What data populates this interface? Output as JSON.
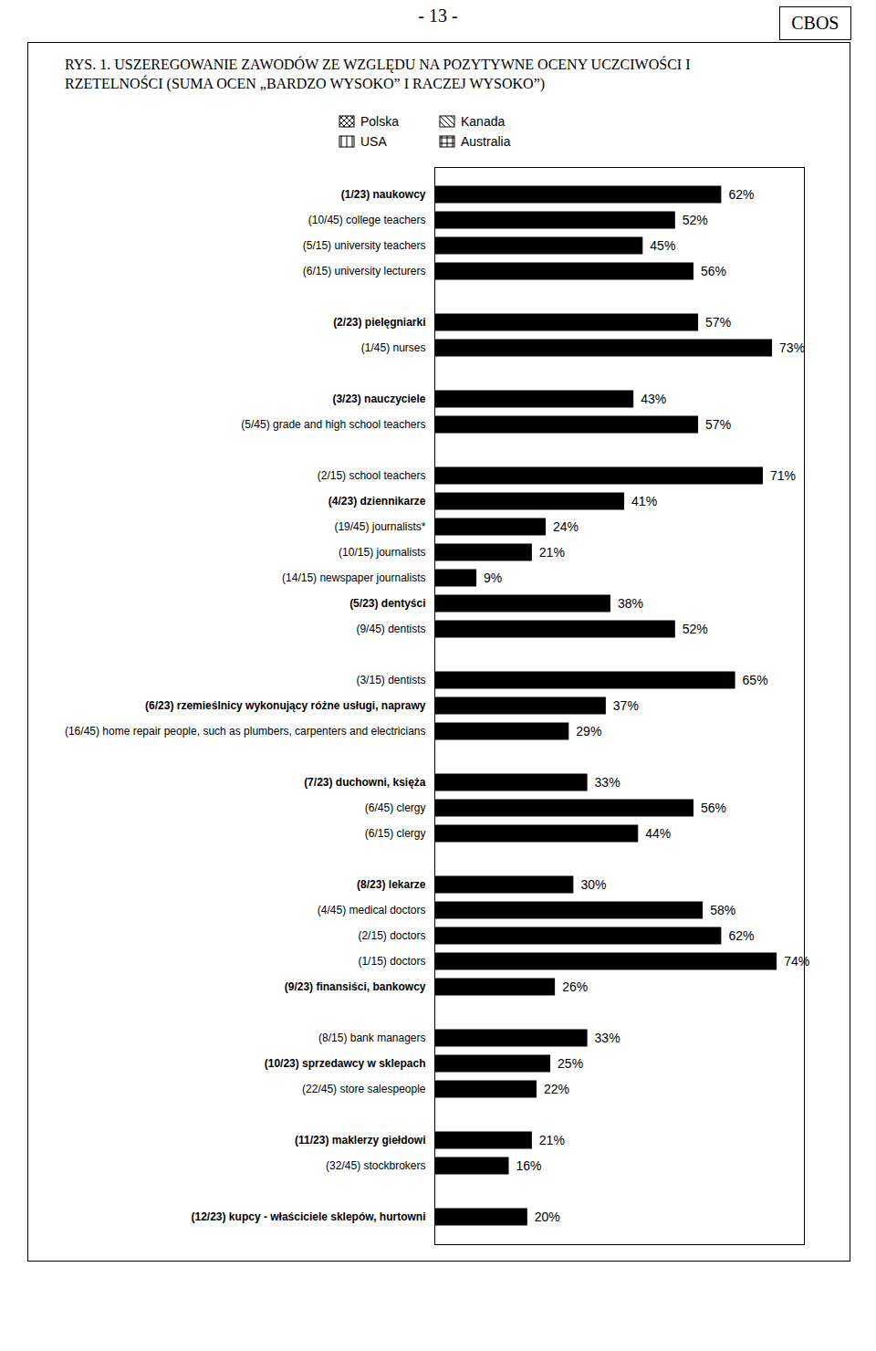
{
  "chart_data": {
    "type": "bar",
    "orientation": "horizontal",
    "title": "RYS. 1. USZEREGOWANIE ZAWODÓW ZE WZGLĘDU NA POZYTYWNE OCENY UCZCIWOŚCI I RZETELNOŚCI (SUMA OCEN „BARDZO WYSOKO” I RACZEJ WYSOKO”)",
    "page_label": "- 13 -",
    "source": "CBOS",
    "legend": "top",
    "data_labels": true,
    "tick_labels": "y",
    "xlim": [
      0,
      80
    ],
    "xticks": [],
    "categories": [
      "(1/23) naukowcy",
      "(10/45) college teachers",
      "(5/15) university teachers",
      "(6/15) university lecturers",
      null,
      "(2/23) pielęgniarki",
      "(1/45) nurses",
      null,
      "(3/23) nauczyciele",
      "(5/45) grade and high school teachers",
      null,
      "(2/15) school teachers",
      "(4/23) dziennikarze",
      "(19/45) journalists*",
      "(10/15) journalists",
      "(14/15) newspaper journalists",
      "(5/23) dentyści",
      "(9/45) dentists",
      null,
      "(3/15) dentists",
      "(6/23) rzemieślnicy wykonujący różne usługi, naprawy",
      "(16/45) home repair people, such as plumbers, carpenters and electricians",
      null,
      "(7/23) duchowni, księża",
      "(6/45) clergy",
      "(6/15) clergy",
      null,
      "(8/23) lekarze",
      "(4/45) medical doctors",
      "(2/15) doctors",
      "(1/15) doctors",
      "(9/23) finansiści, bankowcy",
      null,
      "(8/15) bank managers",
      "(10/23) sprzedawcy w sklepach",
      "(22/45) store salespeople",
      null,
      "(11/23) maklerzy giełdowi",
      "(32/45) stockbrokers",
      null,
      "(12/23) kupcy - właściciele sklepów, hurtowni"
    ],
    "series": [
      {
        "name": "Polska",
        "color": "#000000",
        "values": [
          62,
          null,
          null,
          null,
          null,
          57,
          null,
          null,
          43,
          null,
          null,
          null,
          41,
          null,
          null,
          null,
          38,
          null,
          null,
          null,
          37,
          null,
          null,
          33,
          null,
          null,
          null,
          30,
          null,
          null,
          null,
          26,
          null,
          null,
          25,
          null,
          null,
          21,
          null,
          null,
          20
        ],
        "value_labels": [
          "62%",
          null,
          null,
          null,
          null,
          "57%",
          null,
          null,
          "43%",
          null,
          null,
          null,
          "41%",
          null,
          null,
          null,
          "38%",
          null,
          null,
          null,
          "37%",
          null,
          null,
          "33%",
          null,
          null,
          null,
          "30%",
          null,
          null,
          null,
          "26%",
          null,
          null,
          "25%",
          null,
          null,
          "21%",
          null,
          null,
          "20%"
        ]
      },
      {
        "name": "Kanada",
        "color": "#000000",
        "values": [
          null,
          null,
          45,
          null,
          null,
          null,
          null,
          null,
          null,
          null,
          null,
          null,
          null,
          null,
          21,
          null,
          null,
          null,
          null,
          null,
          null,
          null,
          null,
          null,
          null,
          44,
          null,
          null,
          null,
          62,
          null,
          null,
          null,
          null,
          null,
          null,
          null,
          null,
          null,
          null,
          null
        ],
        "value_labels": [
          null,
          null,
          "45%",
          null,
          null,
          null,
          null,
          null,
          null,
          null,
          null,
          null,
          null,
          null,
          "21%",
          null,
          null,
          null,
          null,
          null,
          null,
          null,
          null,
          null,
          null,
          "44%",
          null,
          null,
          null,
          "62%",
          null,
          null,
          null,
          null,
          null,
          null,
          null,
          null,
          null,
          null,
          null
        ]
      },
      {
        "name": "USA",
        "color": "#000000",
        "values": [
          null,
          52,
          null,
          null,
          null,
          null,
          73,
          null,
          null,
          57,
          null,
          null,
          null,
          24,
          null,
          null,
          null,
          52,
          null,
          null,
          null,
          29,
          null,
          null,
          56,
          null,
          null,
          null,
          58,
          null,
          null,
          null,
          null,
          null,
          null,
          22,
          null,
          null,
          16,
          null,
          null
        ],
        "value_labels": [
          null,
          "52%",
          null,
          null,
          null,
          null,
          "73%",
          null,
          null,
          "57%",
          null,
          null,
          null,
          "24%",
          null,
          null,
          null,
          "52%",
          null,
          null,
          null,
          "29%",
          null,
          null,
          "56%",
          null,
          null,
          null,
          "58%",
          null,
          null,
          null,
          null,
          null,
          null,
          "22%",
          null,
          null,
          "16%",
          null,
          null
        ]
      },
      {
        "name": "Australia",
        "color": "#000000",
        "values": [
          null,
          null,
          null,
          56,
          null,
          null,
          null,
          null,
          null,
          null,
          null,
          71,
          null,
          null,
          null,
          9,
          null,
          null,
          null,
          65,
          null,
          null,
          null,
          null,
          null,
          null,
          null,
          null,
          null,
          null,
          74,
          null,
          null,
          33,
          null,
          null,
          null,
          null,
          null,
          null,
          null
        ],
        "value_labels": [
          null,
          null,
          null,
          "56%",
          null,
          null,
          null,
          null,
          null,
          null,
          null,
          "71%",
          null,
          null,
          null,
          "9%",
          null,
          null,
          null,
          "65%",
          null,
          null,
          null,
          null,
          null,
          null,
          null,
          null,
          null,
          null,
          "74%",
          null,
          null,
          "33%",
          null,
          null,
          null,
          null,
          null,
          null,
          null
        ]
      }
    ]
  }
}
